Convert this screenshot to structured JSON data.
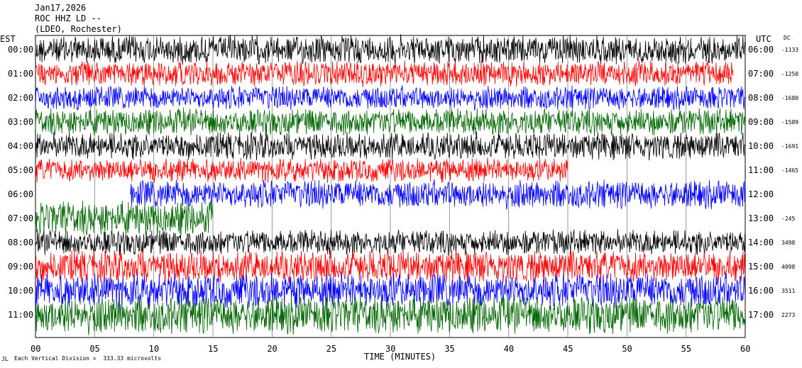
{
  "header": {
    "date": "Jan17,2026",
    "station": "ROC HHZ LD --",
    "location": "(LDEO, Rochester)"
  },
  "left_tz": "EST",
  "right_tz": "UTC",
  "dc_header": "DC",
  "xlabel": "TIME (MINUTES)",
  "footer": "Each Vertical Division =  333.33 microvolts",
  "footer_mark": "JL",
  "chart_data": {
    "type": "line",
    "title": "",
    "xlabel": "TIME (MINUTES)",
    "xlim": [
      0,
      60
    ],
    "x_ticks": [
      "00",
      "05",
      "10",
      "15",
      "20",
      "25",
      "30",
      "35",
      "40",
      "45",
      "50",
      "55",
      "60"
    ],
    "grid": true,
    "series": [
      {
        "est": "00:00",
        "utc": "06:00",
        "dc": "-1133",
        "color": "#000000",
        "start": 0,
        "end": 60,
        "amp": 0.9
      },
      {
        "est": "01:00",
        "utc": "07:00",
        "dc": "-1250",
        "color": "#ff0000",
        "start": 0,
        "end": 59,
        "amp": 0.8
      },
      {
        "est": "02:00",
        "utc": "08:00",
        "dc": "-1680",
        "color": "#0000ff",
        "start": 0,
        "end": 60,
        "amp": 0.75
      },
      {
        "est": "03:00",
        "utc": "09:00",
        "dc": "-1589",
        "color": "#006600",
        "start": 0,
        "end": 60,
        "amp": 0.85
      },
      {
        "est": "04:00",
        "utc": "10:00",
        "dc": "-1691",
        "color": "#000000",
        "start": 0,
        "end": 60,
        "amp": 0.85
      },
      {
        "est": "05:00",
        "utc": "11:00",
        "dc": "-1465",
        "color": "#ff0000",
        "start": 0,
        "end": 45,
        "amp": 0.75
      },
      {
        "est": "06:00",
        "utc": "12:00",
        "dc": "",
        "color": "#0000ff",
        "start": 8,
        "end": 60,
        "amp": 0.9
      },
      {
        "est": "07:00",
        "utc": "13:00",
        "dc": "-245",
        "color": "#006600",
        "start": 0,
        "end": 15,
        "amp": 1.1
      },
      {
        "est": "08:00",
        "utc": "14:00",
        "dc": "3498",
        "color": "#000000",
        "start": 0,
        "end": 60,
        "amp": 0.8
      },
      {
        "est": "09:00",
        "utc": "15:00",
        "dc": "4098",
        "color": "#ff0000",
        "start": 0,
        "end": 60,
        "amp": 1.0
      },
      {
        "est": "10:00",
        "utc": "16:00",
        "dc": "3511",
        "color": "#0000ff",
        "start": 0,
        "end": 60,
        "amp": 1.1
      },
      {
        "est": "11:00",
        "utc": "17:00",
        "dc": "2273",
        "color": "#006600",
        "start": 0,
        "end": 60,
        "amp": 1.2
      }
    ]
  }
}
